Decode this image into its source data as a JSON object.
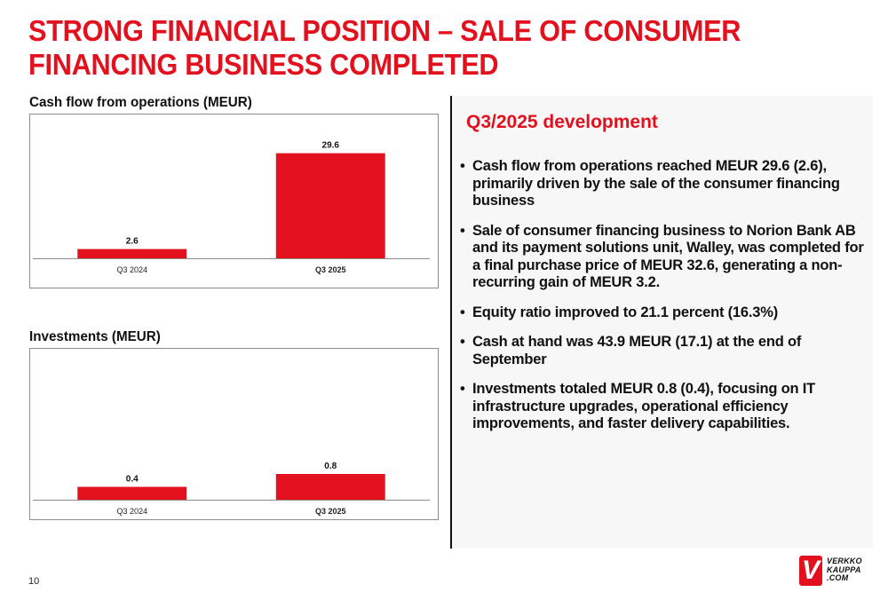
{
  "slide": {
    "title_lines": [
      "STRONG FINANCIAL POSITION – SALE OF CONSUMER",
      "FINANCING BUSINESS COMPLETED"
    ],
    "page_number": "10",
    "brand_color": "#e3111e"
  },
  "chart_data": [
    {
      "type": "bar",
      "title": "Cash flow from operations (MEUR)",
      "categories": [
        "Q3 2024",
        "Q3 2025"
      ],
      "values": [
        2.6,
        29.6
      ],
      "data_labels": [
        "2.6",
        "29.6"
      ],
      "bold_categories": [
        false,
        true
      ],
      "xlabel": "",
      "ylabel": "",
      "ylim": [
        0,
        33
      ],
      "grid": false,
      "legend": "none",
      "bar_color": "#e3111e"
    },
    {
      "type": "bar",
      "title": "Investments (MEUR)",
      "categories": [
        "Q3 2024",
        "Q3 2025"
      ],
      "values": [
        0.4,
        0.8
      ],
      "data_labels": [
        "0.4",
        "0.8"
      ],
      "bold_categories": [
        false,
        true
      ],
      "xlabel": "",
      "ylabel": "",
      "ylim": [
        0,
        4
      ],
      "grid": false,
      "legend": "none",
      "bar_color": "#e3111e"
    }
  ],
  "panel": {
    "heading": "Q3/2025 development",
    "bullets": [
      "Cash flow from operations reached MEUR 29.6 (2.6), primarily driven by the sale of the consumer financing business",
      "Sale of consumer financing business to Norion Bank AB and its payment solutions unit, Walley, was completed for a final purchase price of MEUR 32.6, generating a non-recurring gain of MEUR 3.2.",
      "Equity ratio improved to 21.1 percent (16.3%)",
      "Cash at hand was 43.9 MEUR (17.1) at the end of September",
      "Investments totaled MEUR 0.8 (0.4), focusing on IT infrastructure upgrades, operational efficiency improvements, and faster delivery capabilities."
    ],
    "bullet_glyph": "•"
  },
  "logo": {
    "icon": "verkkokauppa-v-logo-icon",
    "mark": "V",
    "text_lines": [
      "VERKKO",
      "KAUPPA",
      ".COM"
    ]
  }
}
